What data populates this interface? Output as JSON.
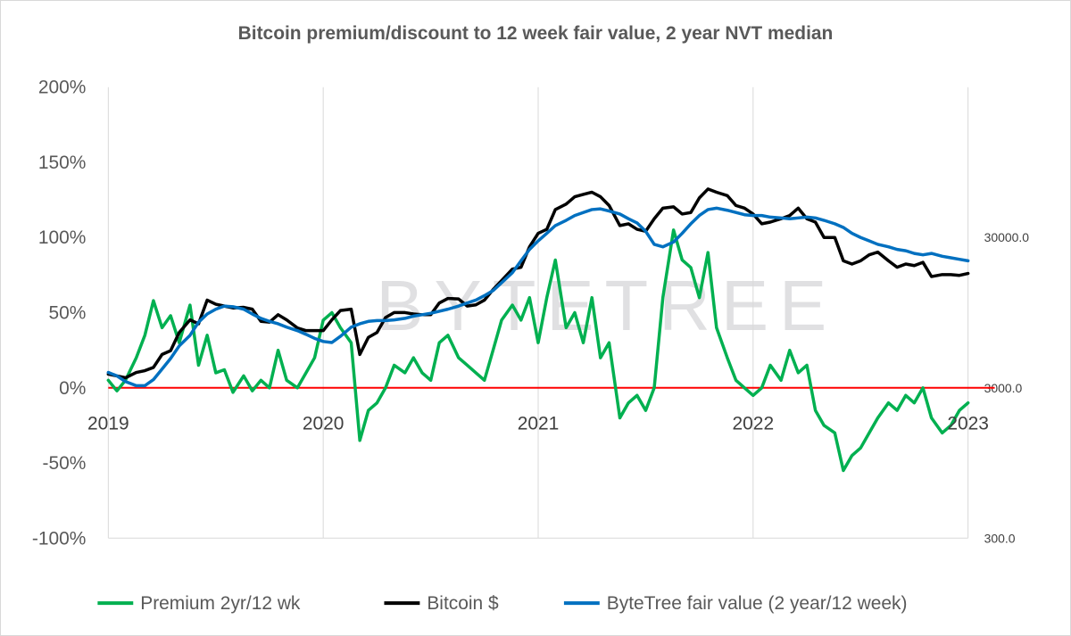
{
  "chart_data": {
    "type": "line",
    "title": "Bitcoin premium/discount to 12 week fair value, 2 year NVT median",
    "xlabel": "",
    "ylabel": "",
    "x_ticks": [
      "2019",
      "2020",
      "2021",
      "2022",
      "2023"
    ],
    "y_ticks": [
      "200%",
      "150%",
      "100%",
      "50%",
      "0%",
      "-50%",
      "-100%"
    ],
    "ylim": [
      -1.0,
      2.0
    ],
    "y2_ticks": [
      "30000.0",
      "3000.0",
      "300.0"
    ],
    "y2_scale": "log",
    "y2lim": [
      300,
      300000
    ],
    "grid": "vertical",
    "legend_position": "bottom",
    "watermark": "BYTETREE",
    "zero_line": {
      "value": 0.0,
      "color": "#ff0000"
    },
    "series": [
      {
        "name": "Premium 2yr/12 wk",
        "axis": "left",
        "color": "#00b050",
        "points": [
          [
            2019.0,
            0.05
          ],
          [
            2019.04,
            -0.02
          ],
          [
            2019.08,
            0.05
          ],
          [
            2019.13,
            0.2
          ],
          [
            2019.17,
            0.35
          ],
          [
            2019.21,
            0.58
          ],
          [
            2019.25,
            0.4
          ],
          [
            2019.29,
            0.48
          ],
          [
            2019.33,
            0.3
          ],
          [
            2019.38,
            0.55
          ],
          [
            2019.42,
            0.15
          ],
          [
            2019.46,
            0.35
          ],
          [
            2019.5,
            0.1
          ],
          [
            2019.54,
            0.12
          ],
          [
            2019.58,
            -0.03
          ],
          [
            2019.63,
            0.08
          ],
          [
            2019.67,
            -0.02
          ],
          [
            2019.71,
            0.05
          ],
          [
            2019.75,
            0.0
          ],
          [
            2019.79,
            0.25
          ],
          [
            2019.83,
            0.05
          ],
          [
            2019.88,
            0.0
          ],
          [
            2019.92,
            0.1
          ],
          [
            2019.96,
            0.2
          ],
          [
            2020.0,
            0.45
          ],
          [
            2020.04,
            0.5
          ],
          [
            2020.08,
            0.4
          ],
          [
            2020.13,
            0.3
          ],
          [
            2020.17,
            -0.35
          ],
          [
            2020.21,
            -0.15
          ],
          [
            2020.25,
            -0.1
          ],
          [
            2020.29,
            0.0
          ],
          [
            2020.33,
            0.15
          ],
          [
            2020.38,
            0.1
          ],
          [
            2020.42,
            0.2
          ],
          [
            2020.46,
            0.1
          ],
          [
            2020.5,
            0.05
          ],
          [
            2020.54,
            0.3
          ],
          [
            2020.58,
            0.35
          ],
          [
            2020.63,
            0.2
          ],
          [
            2020.67,
            0.15
          ],
          [
            2020.71,
            0.1
          ],
          [
            2020.75,
            0.05
          ],
          [
            2020.79,
            0.25
          ],
          [
            2020.83,
            0.45
          ],
          [
            2020.88,
            0.55
          ],
          [
            2020.92,
            0.45
          ],
          [
            2020.96,
            0.6
          ],
          [
            2021.0,
            0.3
          ],
          [
            2021.04,
            0.6
          ],
          [
            2021.08,
            0.85
          ],
          [
            2021.13,
            0.4
          ],
          [
            2021.17,
            0.5
          ],
          [
            2021.21,
            0.3
          ],
          [
            2021.25,
            0.6
          ],
          [
            2021.29,
            0.2
          ],
          [
            2021.33,
            0.3
          ],
          [
            2021.38,
            -0.2
          ],
          [
            2021.42,
            -0.1
          ],
          [
            2021.46,
            -0.05
          ],
          [
            2021.5,
            -0.15
          ],
          [
            2021.54,
            0.0
          ],
          [
            2021.58,
            0.6
          ],
          [
            2021.63,
            1.05
          ],
          [
            2021.67,
            0.85
          ],
          [
            2021.71,
            0.8
          ],
          [
            2021.75,
            0.6
          ],
          [
            2021.79,
            0.9
          ],
          [
            2021.83,
            0.4
          ],
          [
            2021.88,
            0.2
          ],
          [
            2021.92,
            0.05
          ],
          [
            2021.96,
            0.0
          ],
          [
            2022.0,
            -0.05
          ],
          [
            2022.04,
            0.0
          ],
          [
            2022.08,
            0.15
          ],
          [
            2022.13,
            0.05
          ],
          [
            2022.17,
            0.25
          ],
          [
            2022.21,
            0.1
          ],
          [
            2022.25,
            0.15
          ],
          [
            2022.29,
            -0.15
          ],
          [
            2022.33,
            -0.25
          ],
          [
            2022.38,
            -0.3
          ],
          [
            2022.42,
            -0.55
          ],
          [
            2022.46,
            -0.45
          ],
          [
            2022.5,
            -0.4
          ],
          [
            2022.54,
            -0.3
          ],
          [
            2022.58,
            -0.2
          ],
          [
            2022.63,
            -0.1
          ],
          [
            2022.67,
            -0.15
          ],
          [
            2022.71,
            -0.05
          ],
          [
            2022.75,
            -0.1
          ],
          [
            2022.79,
            0.0
          ],
          [
            2022.83,
            -0.2
          ],
          [
            2022.88,
            -0.3
          ],
          [
            2022.92,
            -0.25
          ],
          [
            2022.96,
            -0.15
          ],
          [
            2023.0,
            -0.1
          ]
        ]
      },
      {
        "name": "Bitcoin $",
        "axis": "right",
        "color": "#000000",
        "points": [
          [
            2019.0,
            3700
          ],
          [
            2019.04,
            3600
          ],
          [
            2019.08,
            3500
          ],
          [
            2019.13,
            3800
          ],
          [
            2019.17,
            3900
          ],
          [
            2019.21,
            4100
          ],
          [
            2019.25,
            5000
          ],
          [
            2019.29,
            5300
          ],
          [
            2019.33,
            7000
          ],
          [
            2019.38,
            8500
          ],
          [
            2019.42,
            8000
          ],
          [
            2019.46,
            11500
          ],
          [
            2019.5,
            10800
          ],
          [
            2019.54,
            10500
          ],
          [
            2019.58,
            10200
          ],
          [
            2019.63,
            10300
          ],
          [
            2019.67,
            10000
          ],
          [
            2019.71,
            8300
          ],
          [
            2019.75,
            8200
          ],
          [
            2019.79,
            9200
          ],
          [
            2019.83,
            8500
          ],
          [
            2019.88,
            7500
          ],
          [
            2019.92,
            7200
          ],
          [
            2019.96,
            7200
          ],
          [
            2020.0,
            7200
          ],
          [
            2020.04,
            8500
          ],
          [
            2020.08,
            9800
          ],
          [
            2020.13,
            10000
          ],
          [
            2020.17,
            5000
          ],
          [
            2020.21,
            6500
          ],
          [
            2020.25,
            7000
          ],
          [
            2020.29,
            8800
          ],
          [
            2020.33,
            9500
          ],
          [
            2020.38,
            9500
          ],
          [
            2020.42,
            9300
          ],
          [
            2020.46,
            9200
          ],
          [
            2020.5,
            9200
          ],
          [
            2020.54,
            11000
          ],
          [
            2020.58,
            11800
          ],
          [
            2020.63,
            11700
          ],
          [
            2020.67,
            10500
          ],
          [
            2020.71,
            10700
          ],
          [
            2020.75,
            11500
          ],
          [
            2020.79,
            13500
          ],
          [
            2020.83,
            15500
          ],
          [
            2020.88,
            18500
          ],
          [
            2020.92,
            19000
          ],
          [
            2020.96,
            26000
          ],
          [
            2021.0,
            32000
          ],
          [
            2021.04,
            34000
          ],
          [
            2021.08,
            46000
          ],
          [
            2021.13,
            50000
          ],
          [
            2021.17,
            56000
          ],
          [
            2021.21,
            58000
          ],
          [
            2021.25,
            60000
          ],
          [
            2021.29,
            56000
          ],
          [
            2021.33,
            49000
          ],
          [
            2021.38,
            36000
          ],
          [
            2021.42,
            37000
          ],
          [
            2021.46,
            34000
          ],
          [
            2021.5,
            33000
          ],
          [
            2021.54,
            40000
          ],
          [
            2021.58,
            47000
          ],
          [
            2021.63,
            48000
          ],
          [
            2021.67,
            43000
          ],
          [
            2021.71,
            44000
          ],
          [
            2021.75,
            55000
          ],
          [
            2021.79,
            63000
          ],
          [
            2021.83,
            60000
          ],
          [
            2021.88,
            57000
          ],
          [
            2021.92,
            49000
          ],
          [
            2021.96,
            47000
          ],
          [
            2022.0,
            43000
          ],
          [
            2022.04,
            37000
          ],
          [
            2022.08,
            38000
          ],
          [
            2022.13,
            40000
          ],
          [
            2022.17,
            42000
          ],
          [
            2022.21,
            47000
          ],
          [
            2022.25,
            40000
          ],
          [
            2022.29,
            38000
          ],
          [
            2022.33,
            30000
          ],
          [
            2022.38,
            30000
          ],
          [
            2022.42,
            21000
          ],
          [
            2022.46,
            20000
          ],
          [
            2022.5,
            21000
          ],
          [
            2022.54,
            23000
          ],
          [
            2022.58,
            24000
          ],
          [
            2022.63,
            21000
          ],
          [
            2022.67,
            19000
          ],
          [
            2022.71,
            20000
          ],
          [
            2022.75,
            19500
          ],
          [
            2022.79,
            20500
          ],
          [
            2022.83,
            16500
          ],
          [
            2022.88,
            17000
          ],
          [
            2022.92,
            17000
          ],
          [
            2022.96,
            16800
          ],
          [
            2023.0,
            17300
          ]
        ]
      },
      {
        "name": "ByteTree fair value (2 year/12 week)",
        "axis": "right",
        "color": "#0070c0",
        "points": [
          [
            2019.0,
            3800
          ],
          [
            2019.04,
            3600
          ],
          [
            2019.08,
            3300
          ],
          [
            2019.13,
            3100
          ],
          [
            2019.17,
            3100
          ],
          [
            2019.21,
            3400
          ],
          [
            2019.25,
            4000
          ],
          [
            2019.29,
            4700
          ],
          [
            2019.33,
            5700
          ],
          [
            2019.38,
            6700
          ],
          [
            2019.42,
            8200
          ],
          [
            2019.46,
            9300
          ],
          [
            2019.5,
            10000
          ],
          [
            2019.54,
            10500
          ],
          [
            2019.58,
            10400
          ],
          [
            2019.63,
            10000
          ],
          [
            2019.67,
            9300
          ],
          [
            2019.71,
            8700
          ],
          [
            2019.75,
            8300
          ],
          [
            2019.79,
            8000
          ],
          [
            2019.83,
            7600
          ],
          [
            2019.88,
            7200
          ],
          [
            2019.92,
            6800
          ],
          [
            2019.96,
            6400
          ],
          [
            2020.0,
            6100
          ],
          [
            2020.04,
            6000
          ],
          [
            2020.08,
            6600
          ],
          [
            2020.13,
            7600
          ],
          [
            2020.17,
            8000
          ],
          [
            2020.21,
            8300
          ],
          [
            2020.25,
            8400
          ],
          [
            2020.29,
            8400
          ],
          [
            2020.33,
            8500
          ],
          [
            2020.38,
            8700
          ],
          [
            2020.42,
            9000
          ],
          [
            2020.46,
            9200
          ],
          [
            2020.5,
            9400
          ],
          [
            2020.54,
            9700
          ],
          [
            2020.58,
            10000
          ],
          [
            2020.63,
            10500
          ],
          [
            2020.67,
            11000
          ],
          [
            2020.71,
            11500
          ],
          [
            2020.75,
            12300
          ],
          [
            2020.79,
            13300
          ],
          [
            2020.83,
            15000
          ],
          [
            2020.88,
            17500
          ],
          [
            2020.92,
            21000
          ],
          [
            2020.96,
            25000
          ],
          [
            2021.0,
            28500
          ],
          [
            2021.04,
            32000
          ],
          [
            2021.08,
            36000
          ],
          [
            2021.13,
            39000
          ],
          [
            2021.17,
            42000
          ],
          [
            2021.21,
            44000
          ],
          [
            2021.25,
            46000
          ],
          [
            2021.29,
            46500
          ],
          [
            2021.33,
            45000
          ],
          [
            2021.38,
            43000
          ],
          [
            2021.42,
            40000
          ],
          [
            2021.46,
            37500
          ],
          [
            2021.5,
            33000
          ],
          [
            2021.54,
            27000
          ],
          [
            2021.58,
            26000
          ],
          [
            2021.63,
            28000
          ],
          [
            2021.67,
            32000
          ],
          [
            2021.71,
            37000
          ],
          [
            2021.75,
            42000
          ],
          [
            2021.79,
            46000
          ],
          [
            2021.83,
            47000
          ],
          [
            2021.88,
            45500
          ],
          [
            2021.92,
            44000
          ],
          [
            2021.96,
            42500
          ],
          [
            2022.0,
            42000
          ],
          [
            2022.04,
            42000
          ],
          [
            2022.08,
            41000
          ],
          [
            2022.13,
            40500
          ],
          [
            2022.17,
            40000
          ],
          [
            2022.21,
            40500
          ],
          [
            2022.25,
            41000
          ],
          [
            2022.29,
            40500
          ],
          [
            2022.33,
            39000
          ],
          [
            2022.38,
            37000
          ],
          [
            2022.42,
            35000
          ],
          [
            2022.46,
            32000
          ],
          [
            2022.5,
            30000
          ],
          [
            2022.54,
            28500
          ],
          [
            2022.58,
            27000
          ],
          [
            2022.63,
            26000
          ],
          [
            2022.67,
            25000
          ],
          [
            2022.71,
            24500
          ],
          [
            2022.75,
            23500
          ],
          [
            2022.79,
            23000
          ],
          [
            2022.83,
            23500
          ],
          [
            2022.88,
            22500
          ],
          [
            2022.92,
            22000
          ],
          [
            2022.96,
            21500
          ],
          [
            2023.0,
            21000
          ]
        ]
      }
    ]
  }
}
